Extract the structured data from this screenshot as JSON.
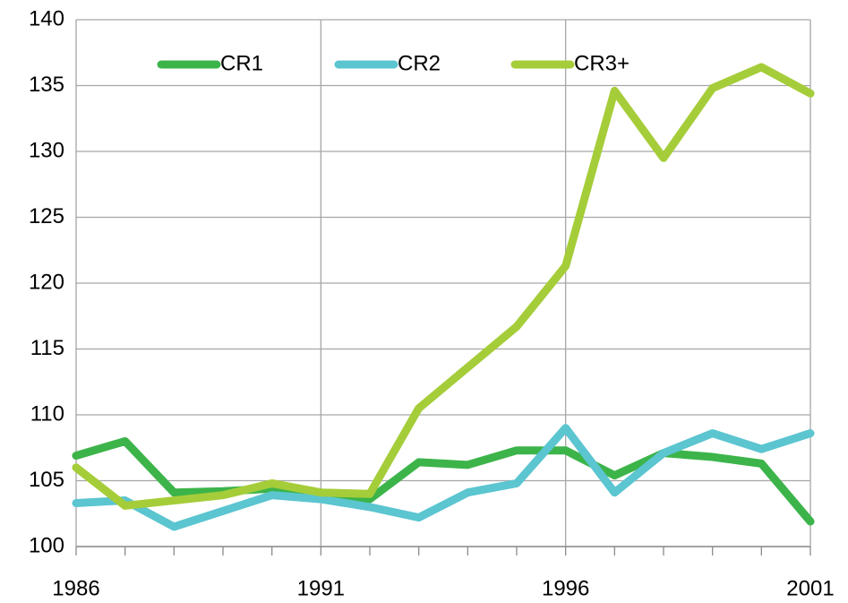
{
  "chart_data": {
    "type": "line",
    "x": [
      1986,
      1987,
      1988,
      1989,
      1990,
      1991,
      1992,
      1993,
      1994,
      1995,
      1996,
      1997,
      1998,
      1999,
      2000,
      2001
    ],
    "series": [
      {
        "name": "CR1",
        "color": "#3cb44a",
        "values": [
          106.9,
          108.0,
          104.1,
          104.2,
          104.4,
          104.1,
          103.6,
          106.4,
          106.2,
          107.3,
          107.3,
          105.4,
          107.1,
          106.8,
          106.3,
          101.9
        ]
      },
      {
        "name": "CR2",
        "color": "#5bc5d0",
        "values": [
          103.3,
          103.5,
          101.5,
          102.7,
          103.9,
          103.6,
          103.0,
          102.2,
          104.1,
          104.8,
          109.0,
          104.1,
          107.1,
          108.6,
          107.4,
          108.6
        ]
      },
      {
        "name": "CR3+",
        "color": "#a5cd39",
        "values": [
          106.0,
          103.1,
          103.5,
          103.9,
          104.8,
          104.1,
          104.0,
          110.5,
          113.6,
          116.7,
          121.3,
          134.6,
          129.5,
          134.8,
          136.4,
          134.4
        ]
      }
    ],
    "xlim": [
      1986,
      2001
    ],
    "xticks": [
      1986,
      1991,
      1996,
      2001
    ],
    "ylim": [
      100,
      140
    ],
    "yticks": [
      100,
      105,
      110,
      115,
      120,
      125,
      130,
      135,
      140
    ],
    "grid": true,
    "legend": "top"
  }
}
